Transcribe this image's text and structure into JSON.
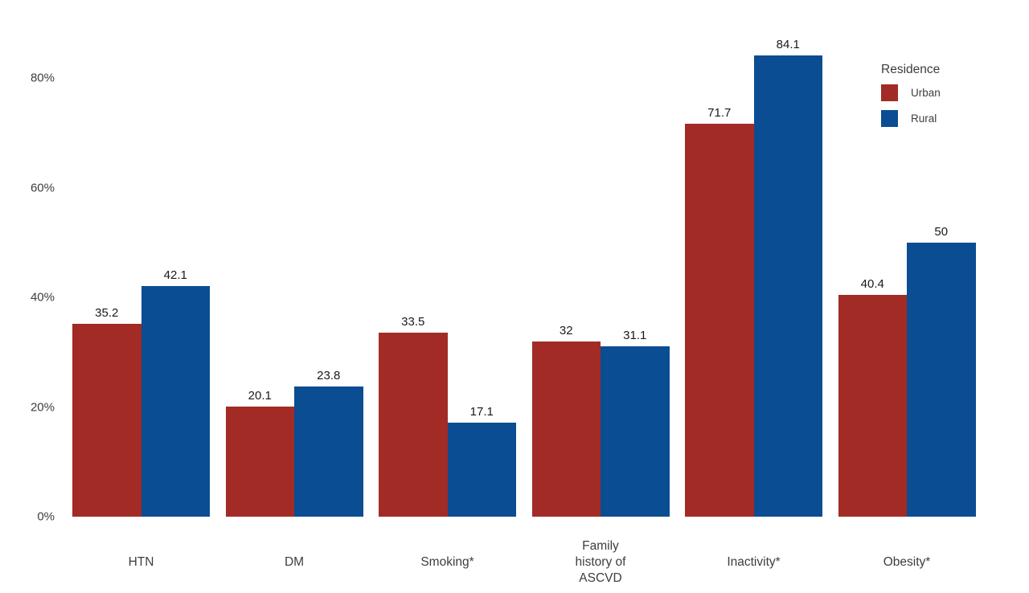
{
  "chart_data": {
    "type": "bar",
    "title": "",
    "categories": [
      "HTN",
      "DM",
      "Smoking*",
      "Family\nhistory of\nASCVD",
      "Inactivity*",
      "Obesity*"
    ],
    "series": [
      {
        "name": "Urban",
        "color": "#A22B26",
        "values": [
          35.2,
          20.1,
          33.5,
          32,
          71.7,
          40.4
        ],
        "labels": [
          "35.2",
          "20.1",
          "33.5",
          "32",
          "71.7",
          "40.4"
        ]
      },
      {
        "name": "Rural",
        "color": "#0B4D92",
        "values": [
          42.1,
          23.8,
          17.1,
          31.1,
          84.1,
          50
        ],
        "labels": [
          "42.1",
          "23.8",
          "17.1",
          "31.1",
          "84.1",
          "50"
        ]
      }
    ],
    "legend": {
      "title": "Residence",
      "position": "top-right"
    },
    "y_axis": {
      "ticks": [
        0,
        20,
        40,
        60,
        80
      ],
      "tick_labels": [
        "0%",
        "20%",
        "40%",
        "60%",
        "80%"
      ],
      "ylim": [
        0,
        88
      ]
    },
    "x_axis": {
      "label": ""
    },
    "grid": false
  },
  "colors": {
    "background": "#ffffff",
    "axis_text": "#3d3d3d",
    "value_label_text": "#1a1a1a",
    "urban": "#A22B26",
    "rural": "#0B4D92"
  }
}
